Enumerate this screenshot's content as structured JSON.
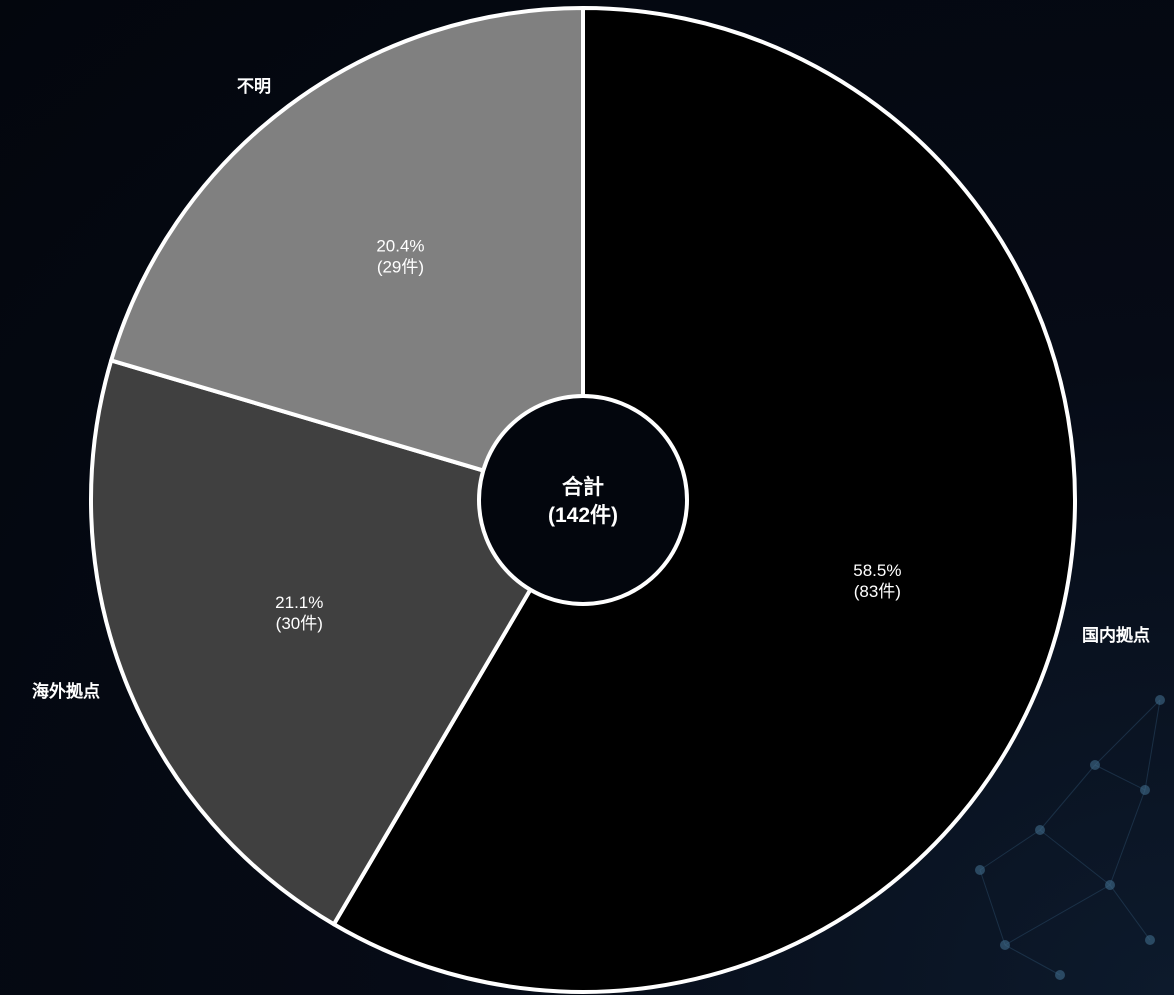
{
  "chart_data": {
    "type": "pie",
    "total": {
      "label": "合計",
      "value_text": "(142件)",
      "value": 142
    },
    "slices": [
      {
        "name": "国内拠点",
        "value": 83,
        "percent": 58.5,
        "percent_text": "58.5%",
        "count_text": "(83件)",
        "color": "#000000"
      },
      {
        "name": "海外拠点",
        "value": 30,
        "percent": 21.1,
        "percent_text": "21.1%",
        "count_text": "(30件)",
        "color": "#404040"
      },
      {
        "name": "不明",
        "value": 29,
        "percent": 20.4,
        "percent_text": "20.4%",
        "count_text": "(29件)",
        "color": "#808080"
      }
    ],
    "border_color": "#ffffff",
    "background_color": "#03060d"
  }
}
